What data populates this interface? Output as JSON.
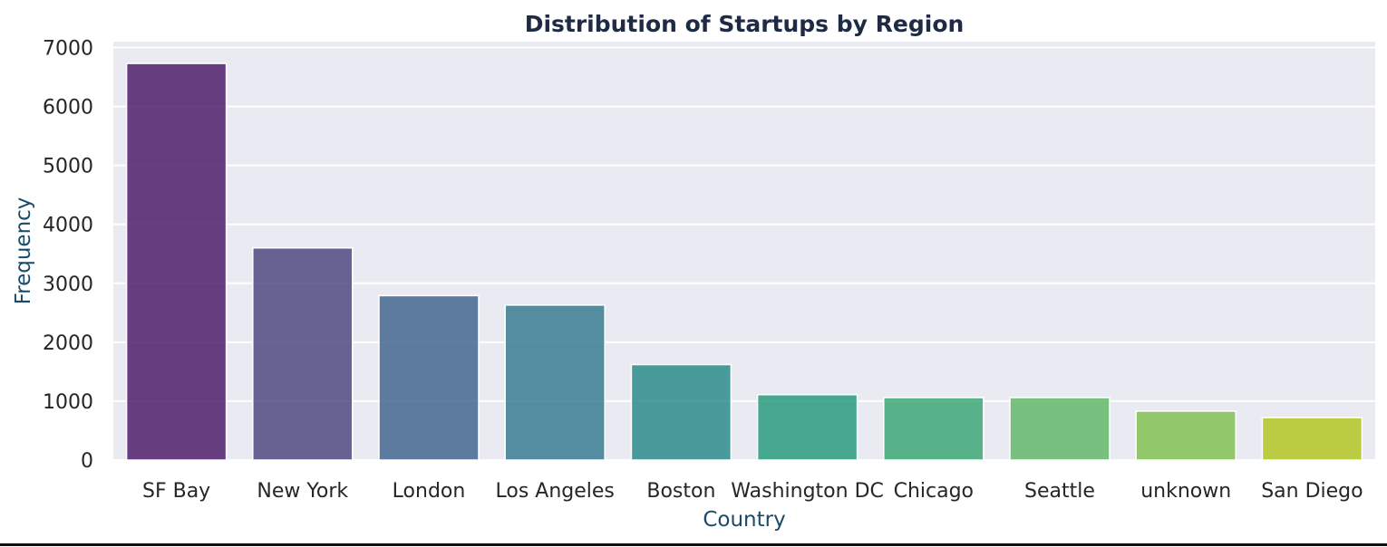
{
  "chart_data": {
    "type": "bar",
    "title": "Distribution of Startups by Region",
    "xlabel": "Country",
    "ylabel": "Frequency",
    "categories": [
      "SF Bay",
      "New York",
      "London",
      "Los Angeles",
      "Boston",
      "Washington DC",
      "Chicago",
      "Seattle",
      "unknown",
      "San Diego"
    ],
    "values": [
      6730,
      3600,
      2790,
      2630,
      1620,
      1110,
      1060,
      1060,
      830,
      720
    ],
    "ylim": [
      0,
      7100
    ],
    "yticks": [
      0,
      1000,
      2000,
      3000,
      4000,
      5000,
      6000,
      7000
    ],
    "grid": true,
    "legend": "none",
    "colors": [
      "#4f1e6b",
      "#4f4b83",
      "#436790",
      "#387d90",
      "#2b8d8b",
      "#2a9c7f",
      "#3ea877",
      "#64b96b",
      "#82c251",
      "#b3c724"
    ],
    "plot_background": "#eaeaf2"
  }
}
